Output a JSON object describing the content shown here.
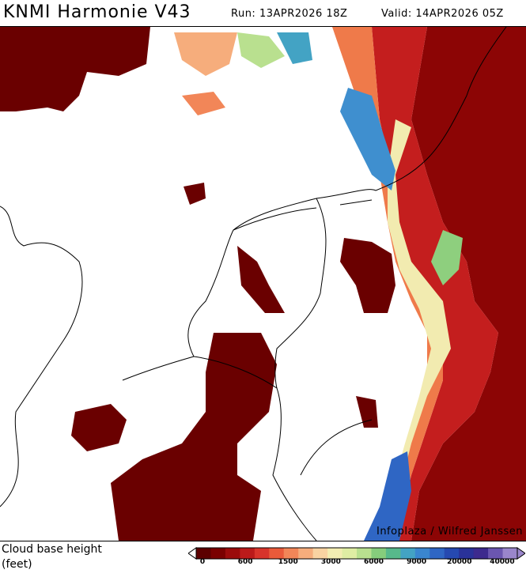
{
  "header": {
    "title": "KNMI Harmonie V43",
    "run": "Run: 13APR2026 18Z",
    "valid": "Valid: 14APR2026 05Z"
  },
  "map": {
    "credit": "Infoplaza / Wilfred Janssen",
    "region": "Netherlands, Belgium, NW Germany, southern North Sea, East England"
  },
  "legend": {
    "title_line1": "Cloud base height",
    "title_line2": "(feet)",
    "colors": [
      "#5c0000",
      "#7a0000",
      "#9b0b0b",
      "#bb1a1a",
      "#d8342b",
      "#ea5a3a",
      "#f28658",
      "#f6ad7c",
      "#f9d3a2",
      "#f3edb2",
      "#dfeda3",
      "#b9e08f",
      "#86cd7c",
      "#57b98b",
      "#43a3c4",
      "#3a86cf",
      "#2f66c4",
      "#2649b0",
      "#2a3299",
      "#3d2a8e",
      "#6b56b0",
      "#9a86cc"
    ],
    "tick_labels": [
      "0",
      "600",
      "1500",
      "3000",
      "6000",
      "9000",
      "20000",
      "40000"
    ]
  }
}
